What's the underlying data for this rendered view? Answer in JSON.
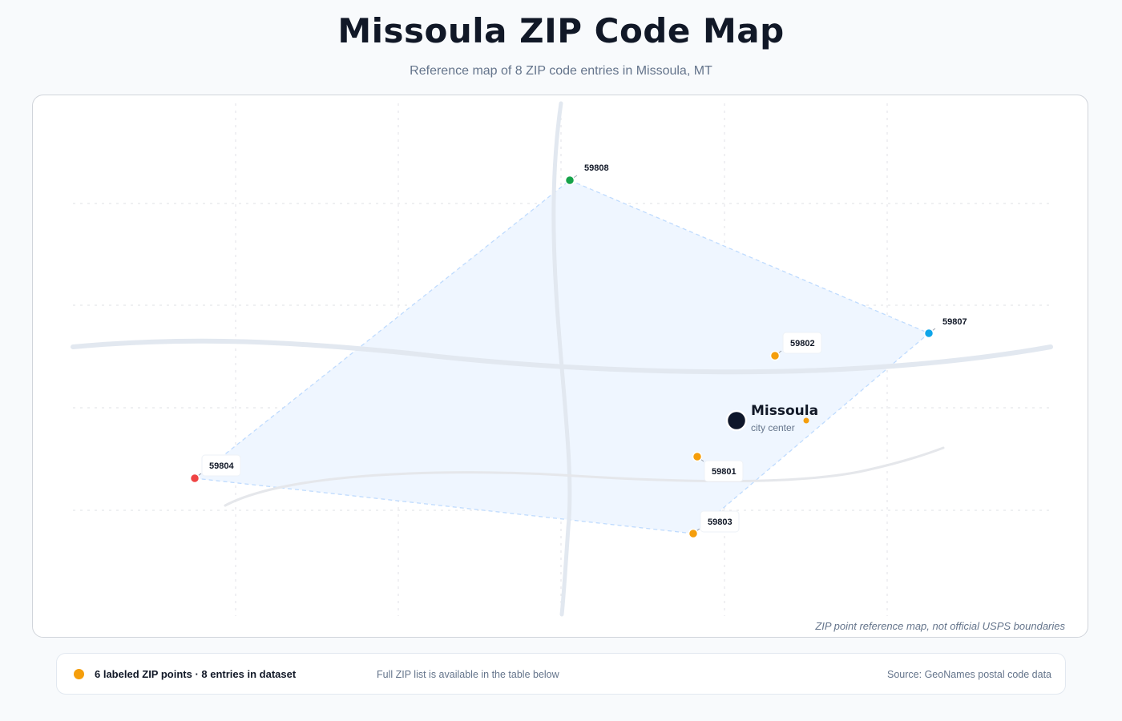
{
  "header": {
    "title": "Missoula ZIP Code Map",
    "subtitle": "Reference map of 8 ZIP code entries in Missoula, MT"
  },
  "map": {
    "note": "ZIP point reference map, not official USPS boundaries",
    "city": {
      "name": "Missoula",
      "sublabel": "city center"
    },
    "zips": [
      {
        "code": "59808",
        "color": "#16a34a"
      },
      {
        "code": "59807",
        "color": "#0ea5e9"
      },
      {
        "code": "59802",
        "color": "#f59e0b"
      },
      {
        "code": "59801",
        "color": "#f59e0b"
      },
      {
        "code": "59803",
        "color": "#f59e0b"
      },
      {
        "code": "59804",
        "color": "#ef4444"
      }
    ],
    "colors": {
      "area_fill": "#eff6ff",
      "area_stroke": "#bfdbfe",
      "road": "#e2e8f0",
      "grid": "#e5e7eb",
      "city_marker": "#0f172a",
      "accent": "#f59e0b"
    }
  },
  "footer": {
    "legend": "6 labeled ZIP points · 8 entries in dataset",
    "legend_color": "#f59e0b",
    "note": "Full ZIP list is available in the table below",
    "source": "Source: GeoNames postal code data"
  }
}
